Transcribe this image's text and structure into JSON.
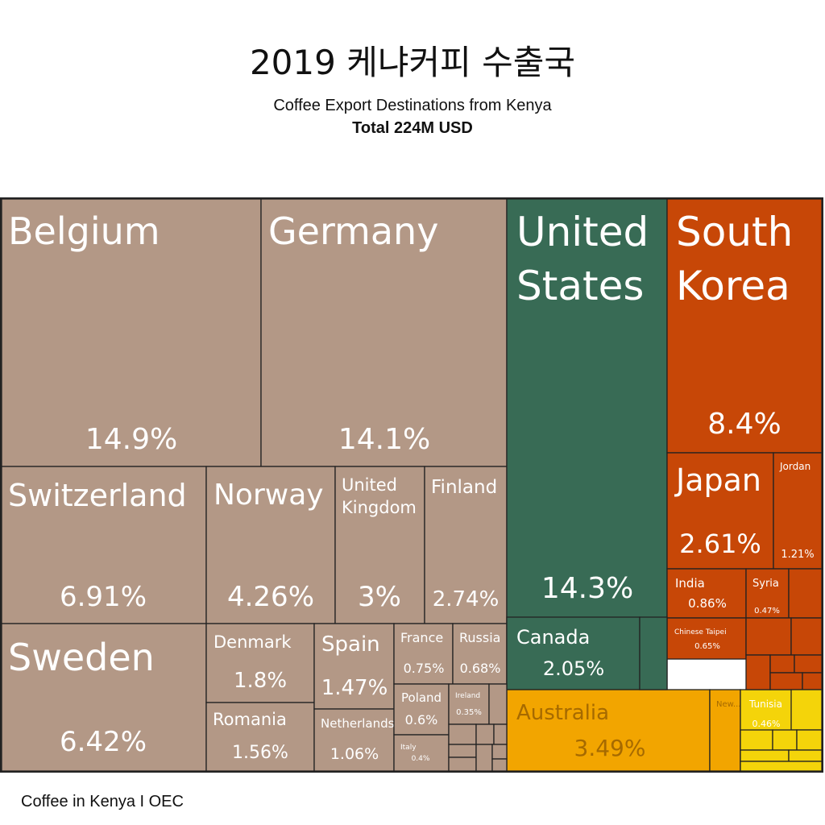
{
  "header": {
    "title": "2019 케냐커피 수출국",
    "subtitle": "Coffee Export Destinations from Kenya",
    "total": "Total 224M USD"
  },
  "footer": {
    "caption": "Coffee in Kenya I OEC"
  },
  "colors": {
    "europe": "#b39886",
    "north_america": "#386b55",
    "asia": "#c74707",
    "oceania": "#f2a500",
    "africa": "#f4d40a",
    "border": "#222222",
    "label_light": "#ffffff",
    "label_dark": "#a66a00"
  },
  "chart_data": {
    "type": "treemap",
    "title": "Coffee Export Destinations from Kenya",
    "total": "Total 224M USD",
    "items": [
      {
        "name": "Belgium",
        "percent": "14.9%",
        "value": 14.9,
        "group": "europe"
      },
      {
        "name": "Germany",
        "percent": "14.1%",
        "value": 14.1,
        "group": "europe"
      },
      {
        "name": "Switzerland",
        "percent": "6.91%",
        "value": 6.91,
        "group": "europe"
      },
      {
        "name": "Norway",
        "percent": "4.26%",
        "value": 4.26,
        "group": "europe"
      },
      {
        "name": "United Kingdom",
        "percent": "3%",
        "value": 3,
        "group": "europe"
      },
      {
        "name": "Finland",
        "percent": "2.74%",
        "value": 2.74,
        "group": "europe"
      },
      {
        "name": "Sweden",
        "percent": "6.42%",
        "value": 6.42,
        "group": "europe"
      },
      {
        "name": "Denmark",
        "percent": "1.8%",
        "value": 1.8,
        "group": "europe"
      },
      {
        "name": "Romania",
        "percent": "1.56%",
        "value": 1.56,
        "group": "europe"
      },
      {
        "name": "Spain",
        "percent": "1.47%",
        "value": 1.47,
        "group": "europe"
      },
      {
        "name": "Netherlands",
        "percent": "1.06%",
        "value": 1.06,
        "group": "europe"
      },
      {
        "name": "France",
        "percent": "0.75%",
        "value": 0.75,
        "group": "europe"
      },
      {
        "name": "Russia",
        "percent": "0.68%",
        "value": 0.68,
        "group": "europe"
      },
      {
        "name": "Poland",
        "percent": "0.6%",
        "value": 0.6,
        "group": "europe"
      },
      {
        "name": "Ireland",
        "percent": "0.35%",
        "value": 0.35,
        "group": "europe"
      },
      {
        "name": "Italy",
        "percent": "0.4%",
        "value": 0.4,
        "group": "europe"
      },
      {
        "name": "United States",
        "percent": "14.3%",
        "value": 14.3,
        "group": "north_america"
      },
      {
        "name": "Canada",
        "percent": "2.05%",
        "value": 2.05,
        "group": "north_america"
      },
      {
        "name": "South Korea",
        "percent": "8.4%",
        "value": 8.4,
        "group": "asia"
      },
      {
        "name": "Japan",
        "percent": "2.61%",
        "value": 2.61,
        "group": "asia"
      },
      {
        "name": "Jordan",
        "percent": "1.21%",
        "value": 1.21,
        "group": "asia"
      },
      {
        "name": "India",
        "percent": "0.86%",
        "value": 0.86,
        "group": "asia"
      },
      {
        "name": "Syria",
        "percent": "0.47%",
        "value": 0.47,
        "group": "asia"
      },
      {
        "name": "Chinese Taipei",
        "percent": "0.65%",
        "value": 0.65,
        "group": "asia"
      },
      {
        "name": "Australia",
        "percent": "3.49%",
        "value": 3.49,
        "group": "oceania"
      },
      {
        "name": "New...",
        "percent": "",
        "value": null,
        "group": "oceania"
      },
      {
        "name": "Tunisia",
        "percent": "0.46%",
        "value": 0.46,
        "group": "africa"
      }
    ]
  }
}
